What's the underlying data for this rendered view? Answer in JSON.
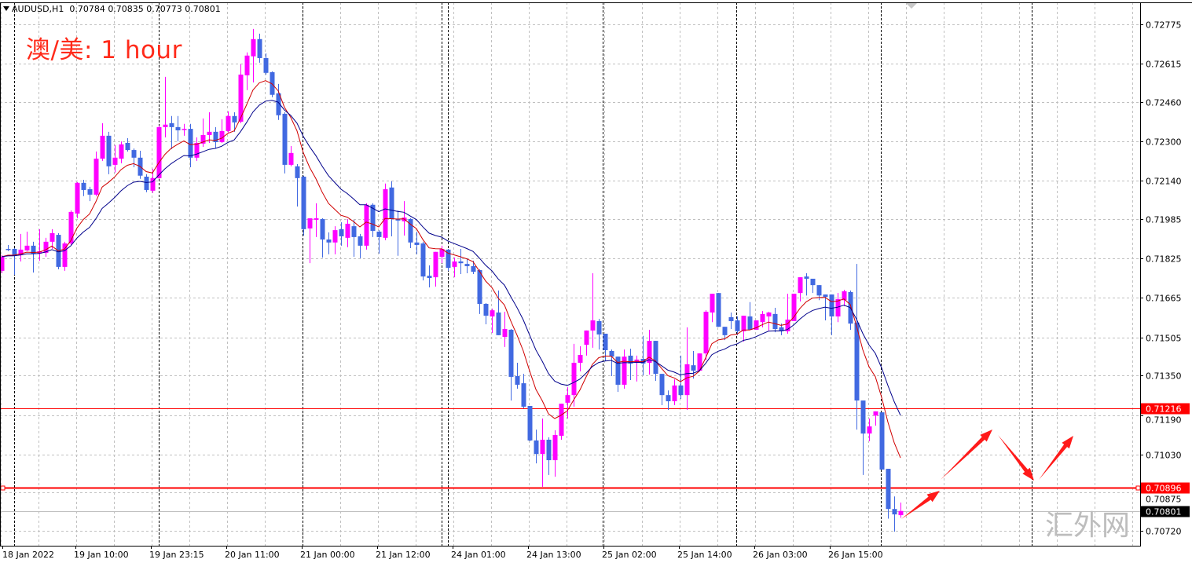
{
  "header": {
    "symbol": "AUDUSD,H1",
    "ohlc_text": "0.70784 0.70835 0.70773 0.70801"
  },
  "annotation_text": "澳/美: 1 hour",
  "watermark": "汇外网",
  "colors": {
    "bull": "#ff00ff",
    "bear": "#4169e1",
    "fast_ma": "#d00000",
    "slow_ma": "#00008b",
    "level_line": "#ff0000",
    "bid_line": "#c0c0c0",
    "grid": "#c0c0c0",
    "separator": "#000000",
    "arrow": "#ff1a1a"
  },
  "chart_data": {
    "type": "candlestick",
    "symbol": "AUDUSD",
    "timeframe": "H1",
    "ylim": [
      0.7066,
      0.72864
    ],
    "grid": true,
    "y_ticks": [
      "0.72775",
      "0.72615",
      "0.72460",
      "0.72300",
      "0.72140",
      "0.71985",
      "0.71825",
      "0.71665",
      "0.71505",
      "0.71350",
      "0.71190",
      "0.71030",
      "0.70875",
      "0.70720"
    ],
    "x_ticks": [
      {
        "label": "18 Jan 2022",
        "bar": 0
      },
      {
        "label": "19 Jan 10:00",
        "bar": 12
      },
      {
        "label": "19 Jan 23:15",
        "bar": 24
      },
      {
        "label": "20 Jan 11:00",
        "bar": 36
      },
      {
        "label": "21 Jan 00:00",
        "bar": 48
      },
      {
        "label": "21 Jan 12:00",
        "bar": 60
      },
      {
        "label": "24 Jan 01:00",
        "bar": 72
      },
      {
        "label": "24 Jan 13:00",
        "bar": 84
      },
      {
        "label": "25 Jan 02:00",
        "bar": 96
      },
      {
        "label": "25 Jan 14:00",
        "bar": 108
      },
      {
        "label": "26 Jan 03:00",
        "bar": 120
      },
      {
        "label": "26 Jan 15:00",
        "bar": 132
      }
    ],
    "levels": [
      {
        "price": 0.71216,
        "label": "0.71216",
        "style": "thin"
      },
      {
        "price": 0.70896,
        "label": "0.70896",
        "style": "thick"
      }
    ],
    "bid": {
      "price": 0.70801,
      "label": "0.70801"
    },
    "ohlc": [
      [
        0.71775,
        0.71839,
        0.71765,
        0.71832
      ],
      [
        0.71864,
        0.7188,
        0.71855,
        0.71861
      ],
      [
        0.71864,
        0.71867,
        0.71759,
        0.71839
      ],
      [
        0.71839,
        0.71925,
        0.71813,
        0.71861
      ],
      [
        0.71858,
        0.71934,
        0.71855,
        0.71877
      ],
      [
        0.71877,
        0.71893,
        0.71768,
        0.71845
      ],
      [
        0.71845,
        0.71944,
        0.71816,
        0.71855
      ],
      [
        0.71848,
        0.71909,
        0.71832,
        0.71893
      ],
      [
        0.71893,
        0.71944,
        0.71864,
        0.71928
      ],
      [
        0.71921,
        0.71928,
        0.71781,
        0.71791
      ],
      [
        0.71791,
        0.71893,
        0.71775,
        0.71886
      ],
      [
        0.71886,
        0.7202,
        0.7188,
        0.72014
      ],
      [
        0.72007,
        0.72135,
        0.71988,
        0.72132
      ],
      [
        0.72132,
        0.72144,
        0.72078,
        0.72103
      ],
      [
        0.72106,
        0.72116,
        0.72058,
        0.72084
      ],
      [
        0.72084,
        0.72259,
        0.72078,
        0.7223
      ],
      [
        0.7223,
        0.72374,
        0.72221,
        0.72323
      ],
      [
        0.72323,
        0.72339,
        0.72167,
        0.72199
      ],
      [
        0.72205,
        0.72285,
        0.72174,
        0.72234
      ],
      [
        0.7223,
        0.723,
        0.72211,
        0.72288
      ],
      [
        0.72294,
        0.72313,
        0.72259,
        0.72265
      ],
      [
        0.72265,
        0.72271,
        0.72195,
        0.72234
      ],
      [
        0.72234,
        0.72262,
        0.72148,
        0.72161
      ],
      [
        0.72157,
        0.72167,
        0.72094,
        0.72103
      ],
      [
        0.721,
        0.72189,
        0.72091,
        0.72151
      ],
      [
        0.72151,
        0.72364,
        0.72148,
        0.72358
      ],
      [
        0.72358,
        0.72562,
        0.72316,
        0.72368
      ],
      [
        0.72374,
        0.72403,
        0.72269,
        0.72358
      ],
      [
        0.72358,
        0.72403,
        0.723,
        0.72345
      ],
      [
        0.72348,
        0.72371,
        0.72323,
        0.72351
      ],
      [
        0.72351,
        0.72371,
        0.72195,
        0.72234
      ],
      [
        0.72234,
        0.72316,
        0.72221,
        0.72294
      ],
      [
        0.72291,
        0.72393,
        0.72278,
        0.72326
      ],
      [
        0.72326,
        0.72418,
        0.72294,
        0.72339
      ],
      [
        0.72339,
        0.72358,
        0.72271,
        0.72297
      ],
      [
        0.72297,
        0.7239,
        0.72294,
        0.72342
      ],
      [
        0.72342,
        0.72422,
        0.72336,
        0.72403
      ],
      [
        0.72403,
        0.72418,
        0.72339,
        0.72377
      ],
      [
        0.7238,
        0.72613,
        0.72374,
        0.72571
      ],
      [
        0.72568,
        0.72661,
        0.72508,
        0.72648
      ],
      [
        0.72645,
        0.72756,
        0.72539,
        0.72715
      ],
      [
        0.72715,
        0.72737,
        0.72619,
        0.72638
      ],
      [
        0.72638,
        0.72657,
        0.72571,
        0.72578
      ],
      [
        0.72581,
        0.72584,
        0.72479,
        0.72489
      ],
      [
        0.72495,
        0.72533,
        0.72387,
        0.72406
      ],
      [
        0.72412,
        0.72418,
        0.7217,
        0.72205
      ],
      [
        0.72205,
        0.72281,
        0.72199,
        0.72253
      ],
      [
        0.72199,
        0.72208,
        0.72036,
        0.72151
      ],
      [
        0.72157,
        0.72161,
        0.71918,
        0.71944
      ],
      [
        0.71947,
        0.71988,
        0.71806,
        0.71988
      ],
      [
        0.71982,
        0.72049,
        0.71912,
        0.71988
      ],
      [
        0.71985,
        0.71988,
        0.71829,
        0.71902
      ],
      [
        0.71902,
        0.71931,
        0.71842,
        0.7189
      ],
      [
        0.7189,
        0.71956,
        0.71842,
        0.7194
      ],
      [
        0.71944,
        0.71972,
        0.71877,
        0.71915
      ],
      [
        0.71909,
        0.71985,
        0.71871,
        0.71966
      ],
      [
        0.71956,
        0.71982,
        0.71832,
        0.71912
      ],
      [
        0.71915,
        0.71925,
        0.71826,
        0.71877
      ],
      [
        0.71877,
        0.72049,
        0.71861,
        0.72043
      ],
      [
        0.72043,
        0.72049,
        0.71912,
        0.71937
      ],
      [
        0.71934,
        0.7194,
        0.71845,
        0.71912
      ],
      [
        0.71909,
        0.72129,
        0.71899,
        0.72106
      ],
      [
        0.72113,
        0.72138,
        0.71915,
        0.71985
      ],
      [
        0.71985,
        0.7202,
        0.71836,
        0.71979
      ],
      [
        0.71976,
        0.72058,
        0.71918,
        0.71991
      ],
      [
        0.71985,
        0.71988,
        0.71867,
        0.7189
      ],
      [
        0.7189,
        0.71934,
        0.71842,
        0.7188
      ],
      [
        0.71886,
        0.71893,
        0.71736,
        0.71752
      ],
      [
        0.71755,
        0.71797,
        0.71708,
        0.71746
      ],
      [
        0.71749,
        0.71852,
        0.71711,
        0.71852
      ],
      [
        0.71832,
        0.71877,
        0.71806,
        0.71864
      ],
      [
        0.71861,
        0.71864,
        0.71775,
        0.71787
      ],
      [
        0.71791,
        0.71829,
        0.71749,
        0.71813
      ],
      [
        0.71813,
        0.71864,
        0.71762,
        0.71806
      ],
      [
        0.71803,
        0.71826,
        0.71765,
        0.71794
      ],
      [
        0.71794,
        0.71816,
        0.71762,
        0.71771
      ],
      [
        0.71778,
        0.71781,
        0.716,
        0.71641
      ],
      [
        0.71641,
        0.71644,
        0.71558,
        0.71593
      ],
      [
        0.7159,
        0.71622,
        0.71523,
        0.71615
      ],
      [
        0.71606,
        0.71695,
        0.71514,
        0.71514
      ],
      [
        0.71507,
        0.71609,
        0.71466,
        0.71539
      ],
      [
        0.71536,
        0.71539,
        0.71249,
        0.71345
      ],
      [
        0.71348,
        0.71402,
        0.71297,
        0.71313
      ],
      [
        0.71319,
        0.71357,
        0.71217,
        0.71224
      ],
      [
        0.71227,
        0.71227,
        0.71084,
        0.71087
      ],
      [
        0.71087,
        0.71131,
        0.70994,
        0.71032
      ],
      [
        0.71032,
        0.71176,
        0.70899,
        0.7109
      ],
      [
        0.7109,
        0.711,
        0.70947,
        0.71007
      ],
      [
        0.71007,
        0.71128,
        0.7094,
        0.71109
      ],
      [
        0.71106,
        0.71236,
        0.7109,
        0.71236
      ],
      [
        0.7124,
        0.71303,
        0.71176,
        0.71271
      ],
      [
        0.71271,
        0.71479,
        0.71224,
        0.71402
      ],
      [
        0.71402,
        0.71469,
        0.71367,
        0.71434
      ],
      [
        0.71475,
        0.71533,
        0.71431,
        0.71533
      ],
      [
        0.71533,
        0.71765,
        0.71463,
        0.71574
      ],
      [
        0.71571,
        0.7158,
        0.71456,
        0.71517
      ],
      [
        0.7152,
        0.7152,
        0.71409,
        0.71453
      ],
      [
        0.7145,
        0.71456,
        0.71348,
        0.71427
      ],
      [
        0.71427,
        0.71427,
        0.71284,
        0.71313
      ],
      [
        0.71313,
        0.71456,
        0.71297,
        0.71427
      ],
      [
        0.71431,
        0.71459,
        0.71332,
        0.71399
      ],
      [
        0.71402,
        0.71431,
        0.71326,
        0.71415
      ],
      [
        0.71418,
        0.71511,
        0.71351,
        0.71399
      ],
      [
        0.71402,
        0.71536,
        0.71354,
        0.71491
      ],
      [
        0.71491,
        0.71491,
        0.71329,
        0.71357
      ],
      [
        0.71357,
        0.71357,
        0.7123,
        0.71271
      ],
      [
        0.71271,
        0.7129,
        0.71211,
        0.71246
      ],
      [
        0.71246,
        0.71335,
        0.7123,
        0.7131
      ],
      [
        0.7131,
        0.71431,
        0.71255,
        0.71271
      ],
      [
        0.71271,
        0.71546,
        0.71211,
        0.71396
      ],
      [
        0.71392,
        0.7145,
        0.71338,
        0.7137
      ],
      [
        0.7137,
        0.7144,
        0.71367,
        0.7144
      ],
      [
        0.7144,
        0.71615,
        0.71412,
        0.71609
      ],
      [
        0.71606,
        0.71682,
        0.71567,
        0.71682
      ],
      [
        0.71685,
        0.71685,
        0.71548,
        0.71548
      ],
      [
        0.71548,
        0.71548,
        0.71494,
        0.71514
      ],
      [
        0.71587,
        0.71606,
        0.71539,
        0.71571
      ],
      [
        0.71574,
        0.7159,
        0.71514,
        0.7153
      ],
      [
        0.7153,
        0.71593,
        0.71488,
        0.71593
      ],
      [
        0.7159,
        0.71648,
        0.71536,
        0.71536
      ],
      [
        0.71536,
        0.71574,
        0.71536,
        0.71574
      ],
      [
        0.71567,
        0.71612,
        0.71546,
        0.716
      ],
      [
        0.7159,
        0.71609,
        0.71533,
        0.71606
      ],
      [
        0.716,
        0.71625,
        0.71526,
        0.71539
      ],
      [
        0.71546,
        0.71561,
        0.71514,
        0.7153
      ],
      [
        0.7153,
        0.71682,
        0.7152,
        0.71577
      ],
      [
        0.71571,
        0.71682,
        0.71571,
        0.71682
      ],
      [
        0.71685,
        0.71749,
        0.71651,
        0.71749
      ],
      [
        0.71752,
        0.71765,
        0.71675,
        0.71743
      ],
      [
        0.71743,
        0.71743,
        0.71685,
        0.71717
      ],
      [
        0.71717,
        0.71717,
        0.71656,
        0.71675
      ],
      [
        0.71679,
        0.71679,
        0.71574,
        0.71669
      ],
      [
        0.71679,
        0.71679,
        0.71514,
        0.7159
      ],
      [
        0.7159,
        0.71685,
        0.71567,
        0.7166
      ],
      [
        0.71656,
        0.71698,
        0.71632,
        0.71692
      ],
      [
        0.71689,
        0.71695,
        0.71536,
        0.71561
      ],
      [
        0.71565,
        0.71803,
        0.71131,
        0.71249
      ],
      [
        0.71249,
        0.71249,
        0.70947,
        0.71115
      ],
      [
        0.71115,
        0.71176,
        0.71084,
        0.71144
      ],
      [
        0.71188,
        0.71205,
        0.71147,
        0.71205
      ],
      [
        0.71201,
        0.71201,
        0.70969,
        0.70969
      ],
      [
        0.70972,
        0.70972,
        0.7077,
        0.70809
      ],
      [
        0.70809,
        0.7086,
        0.70717,
        0.70787
      ],
      [
        0.70784,
        0.70835,
        0.70773,
        0.70801
      ]
    ]
  }
}
